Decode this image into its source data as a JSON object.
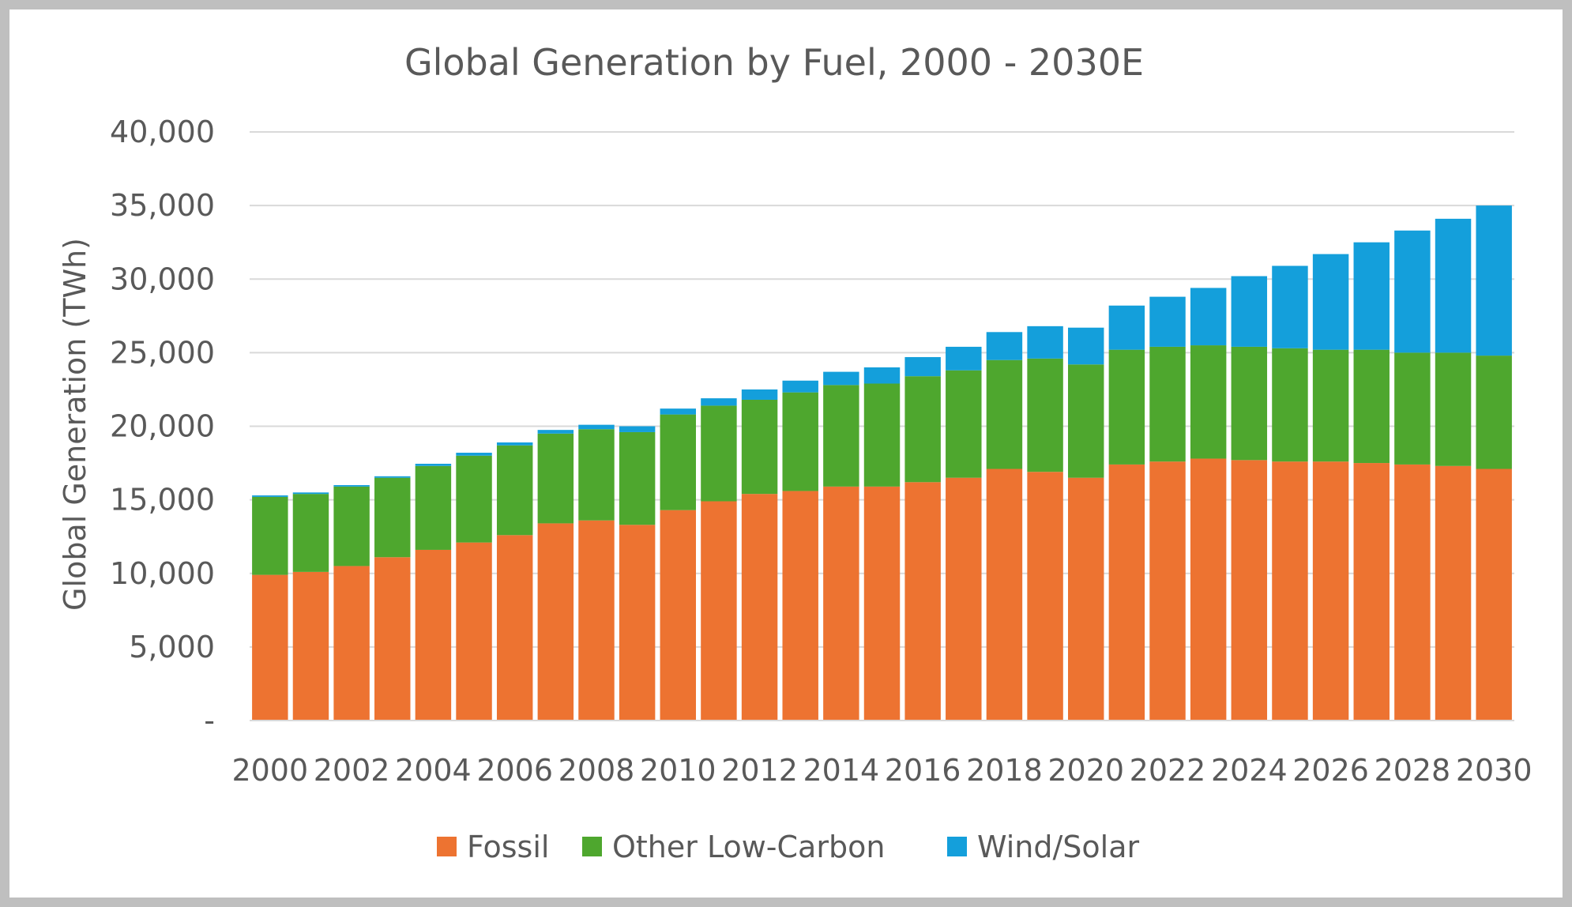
{
  "chart_data": {
    "type": "bar",
    "stacked": true,
    "title": "Global Generation by Fuel, 2000 - 2030E",
    "xlabel": "",
    "ylabel": "Global Generation (TWh)",
    "ylim": [
      0,
      40000
    ],
    "yticks": [
      {
        "value": 0,
        "label": "-"
      },
      {
        "value": 5000,
        "label": "5,000"
      },
      {
        "value": 10000,
        "label": "10,000"
      },
      {
        "value": 15000,
        "label": "15,000"
      },
      {
        "value": 20000,
        "label": "20,000"
      },
      {
        "value": 25000,
        "label": "25,000"
      },
      {
        "value": 30000,
        "label": "30,000"
      },
      {
        "value": 35000,
        "label": "35,000"
      },
      {
        "value": 40000,
        "label": "40,000"
      }
    ],
    "grid": true,
    "legend_position": "bottom",
    "categories": [
      "2000",
      "2001",
      "2002",
      "2003",
      "2004",
      "2005",
      "2006",
      "2007",
      "2008",
      "2009",
      "2010",
      "2011",
      "2012",
      "2013",
      "2014",
      "2015",
      "2016",
      "2017",
      "2018",
      "2019",
      "2020",
      "2021",
      "2022",
      "2023",
      "2024",
      "2025",
      "2026",
      "2027",
      "2028",
      "2029",
      "2030"
    ],
    "xtick_labels": [
      "2000",
      "2002",
      "2004",
      "2006",
      "2008",
      "2010",
      "2012",
      "2014",
      "2016",
      "2018",
      "2020",
      "2022",
      "2024",
      "2026",
      "2028",
      "2030"
    ],
    "series": [
      {
        "name": "Fossil",
        "color": "#ed7331",
        "values": [
          9900,
          10100,
          10500,
          11100,
          11600,
          12100,
          12600,
          13400,
          13600,
          13300,
          14300,
          14900,
          15400,
          15600,
          15900,
          15900,
          16200,
          16500,
          17100,
          16900,
          16500,
          17400,
          17600,
          17800,
          17700,
          17600,
          17600,
          17500,
          17400,
          17300,
          17100
        ]
      },
      {
        "name": "Other Low-Carbon",
        "color": "#4ea72e",
        "values": [
          5300,
          5300,
          5400,
          5400,
          5700,
          5900,
          6100,
          6100,
          6200,
          6300,
          6500,
          6500,
          6400,
          6700,
          6900,
          7000,
          7200,
          7300,
          7400,
          7700,
          7700,
          7800,
          7800,
          7700,
          7700,
          7700,
          7600,
          7700,
          7600,
          7700,
          7700
        ]
      },
      {
        "name": "Wind/Solar",
        "color": "#149fdb",
        "values": [
          100,
          100,
          100,
          100,
          150,
          200,
          200,
          250,
          300,
          400,
          400,
          500,
          700,
          800,
          900,
          1100,
          1300,
          1600,
          1900,
          2200,
          2500,
          3000,
          3400,
          3900,
          4800,
          5600,
          6500,
          7300,
          8300,
          9100,
          10200
        ]
      }
    ]
  }
}
